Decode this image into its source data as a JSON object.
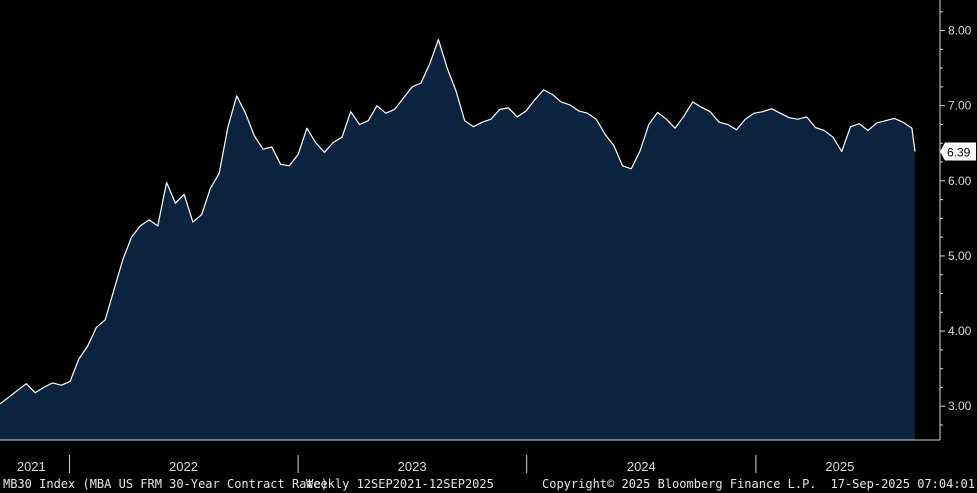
{
  "chart_data": {
    "type": "area",
    "y_axis_position": "right",
    "ylim": [
      2.55,
      8.3
    ],
    "yticks": [
      "3.00",
      "4.00",
      "5.00",
      "6.00",
      "7.00",
      "8.00"
    ],
    "x_range": [
      "2021-09-12",
      "2025-09-12"
    ],
    "x_year_labels": [
      {
        "label": "2021",
        "date": "2021-11-01"
      },
      {
        "label": "2022",
        "date": "2022-07-02"
      },
      {
        "label": "2023",
        "date": "2023-07-02"
      },
      {
        "label": "2024",
        "date": "2024-07-02"
      },
      {
        "label": "2025",
        "date": "2025-05-15"
      }
    ],
    "x_year_separators": [
      "2022-01-01",
      "2023-01-01",
      "2024-01-01",
      "2025-01-01"
    ],
    "last_value_label": "6.39",
    "series": [
      {
        "x": [
          "2021-09-12",
          "2021-09-26",
          "2021-10-10",
          "2021-10-24",
          "2021-11-07",
          "2021-11-21",
          "2021-12-05",
          "2021-12-19",
          "2022-01-02",
          "2022-01-16",
          "2022-01-30",
          "2022-02-13",
          "2022-02-27",
          "2022-03-13",
          "2022-03-27",
          "2022-04-10",
          "2022-04-24",
          "2022-05-08",
          "2022-05-22",
          "2022-06-05",
          "2022-06-19",
          "2022-07-03",
          "2022-07-17",
          "2022-07-31",
          "2022-08-14",
          "2022-08-28",
          "2022-09-11",
          "2022-09-25",
          "2022-10-09",
          "2022-10-23",
          "2022-11-06",
          "2022-11-20",
          "2022-12-04",
          "2022-12-18",
          "2023-01-01",
          "2023-01-15",
          "2023-01-29",
          "2023-02-12",
          "2023-02-26",
          "2023-03-12",
          "2023-03-26",
          "2023-04-09",
          "2023-04-23",
          "2023-05-07",
          "2023-05-21",
          "2023-06-04",
          "2023-06-18",
          "2023-07-02",
          "2023-07-16",
          "2023-07-30",
          "2023-08-13",
          "2023-08-27",
          "2023-09-10",
          "2023-09-24",
          "2023-10-08",
          "2023-10-22",
          "2023-11-05",
          "2023-11-19",
          "2023-12-03",
          "2023-12-17",
          "2023-12-31",
          "2024-01-14",
          "2024-01-28",
          "2024-02-11",
          "2024-02-25",
          "2024-03-10",
          "2024-03-24",
          "2024-04-07",
          "2024-04-21",
          "2024-05-05",
          "2024-05-19",
          "2024-06-02",
          "2024-06-16",
          "2024-06-30",
          "2024-07-14",
          "2024-07-28",
          "2024-08-11",
          "2024-08-25",
          "2024-09-08",
          "2024-09-22",
          "2024-10-06",
          "2024-10-20",
          "2024-11-03",
          "2024-11-17",
          "2024-12-01",
          "2024-12-15",
          "2024-12-29",
          "2025-01-12",
          "2025-01-26",
          "2025-02-09",
          "2025-02-23",
          "2025-03-09",
          "2025-03-23",
          "2025-04-06",
          "2025-04-20",
          "2025-05-04",
          "2025-05-18",
          "2025-06-01",
          "2025-06-15",
          "2025-06-29",
          "2025-07-13",
          "2025-07-27",
          "2025-08-10",
          "2025-08-24",
          "2025-09-07",
          "2025-09-12"
        ],
        "values": [
          3.03,
          3.12,
          3.21,
          3.3,
          3.18,
          3.25,
          3.31,
          3.28,
          3.33,
          3.63,
          3.8,
          4.05,
          4.15,
          4.55,
          4.95,
          5.25,
          5.4,
          5.48,
          5.4,
          5.98,
          5.7,
          5.82,
          5.45,
          5.55,
          5.9,
          6.1,
          6.72,
          7.13,
          6.9,
          6.6,
          6.42,
          6.45,
          6.22,
          6.2,
          6.35,
          6.7,
          6.51,
          6.38,
          6.51,
          6.58,
          6.92,
          6.75,
          6.8,
          7.0,
          6.9,
          6.95,
          7.1,
          7.25,
          7.3,
          7.55,
          7.88,
          7.5,
          7.2,
          6.8,
          6.72,
          6.78,
          6.82,
          6.95,
          6.97,
          6.85,
          6.93,
          7.08,
          7.21,
          7.15,
          7.05,
          7.01,
          6.93,
          6.9,
          6.82,
          6.62,
          6.47,
          6.2,
          6.16,
          6.4,
          6.75,
          6.91,
          6.82,
          6.7,
          6.86,
          7.05,
          6.98,
          6.92,
          6.78,
          6.75,
          6.68,
          6.82,
          6.9,
          6.92,
          6.96,
          6.9,
          6.84,
          6.82,
          6.85,
          6.71,
          6.67,
          6.58,
          6.39,
          6.72,
          6.76,
          6.67,
          6.77,
          6.8,
          6.83,
          6.78,
          6.7,
          6.39
        ]
      }
    ]
  },
  "footer": {
    "ticker_description": "MB30 Index (MBA US FRM 30-Year Contract Rate)",
    "frequency_range": "Weekly 12SEP2021-12SEP2025",
    "copyright": "Copyright© 2025 Bloomberg Finance L.P.",
    "timestamp": "17-Sep-2025 07:04:01"
  },
  "colors": {
    "background": "#000000",
    "area_fill": "#0c2340",
    "line": "#ffffff",
    "axis": "#d8d8d8",
    "label_box": "#ffffff",
    "label_text": "#000000"
  }
}
